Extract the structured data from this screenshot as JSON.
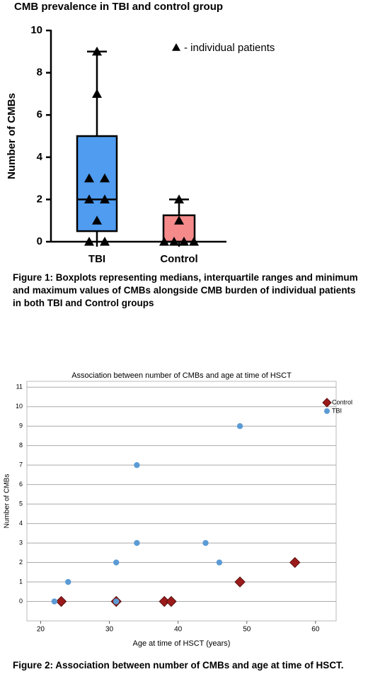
{
  "chart_data": [
    {
      "type": "box",
      "title": "CMB prevalence in TBI and control group",
      "ylabel": "Number of CMBs",
      "categories": [
        "TBI",
        "Control"
      ],
      "colors": [
        "#4f9cf0",
        "#f48a8a"
      ],
      "boxes": [
        {
          "min": 0,
          "q1": 0.5,
          "median": 2,
          "q3": 5,
          "max": 9
        },
        {
          "min": 0,
          "q1": 0,
          "median": 0,
          "q3": 1.25,
          "max": 2
        }
      ],
      "points": [
        [
          9,
          7,
          3,
          3,
          2,
          2,
          1,
          0,
          0
        ],
        [
          2,
          1,
          0,
          0,
          0,
          0
        ]
      ],
      "points_label": "- individual patients",
      "ylim": [
        0,
        10
      ],
      "yticks": [
        0,
        2,
        4,
        6,
        8,
        10
      ],
      "caption": "Figure 1: Boxplots representing medians, interquartile ranges and minimum and maximum values of CMBs alongside CMB burden of individual patients in both TBI and Control groups"
    },
    {
      "type": "scatter",
      "title": "Association between number of CMBs and age at time of HSCT",
      "xlabel": "Age at time of HSCT (years)",
      "ylabel": "Number of CMBs",
      "series": [
        {
          "name": "Control",
          "color": "#9b1b1b",
          "x": [
            23,
            31,
            38,
            39,
            49,
            57
          ],
          "values": [
            0,
            0,
            0,
            0,
            1,
            2
          ]
        },
        {
          "name": "TBI",
          "color": "#5b9bd5",
          "x": [
            22,
            24,
            31,
            31,
            34,
            34,
            44,
            46,
            49
          ],
          "values": [
            0,
            1,
            2,
            0,
            3,
            7,
            3,
            2,
            9
          ]
        }
      ],
      "xlim": [
        18,
        63
      ],
      "xticks": [
        20,
        30,
        40,
        50,
        60
      ],
      "ylim": [
        -1,
        11.3
      ],
      "yticks": [
        0,
        1,
        2,
        3,
        4,
        5,
        6,
        7,
        8,
        9,
        10,
        11
      ],
      "grid": true,
      "legend": "upper right",
      "caption": "Figure 2: Association between number of CMBs and age at time of HSCT."
    }
  ]
}
